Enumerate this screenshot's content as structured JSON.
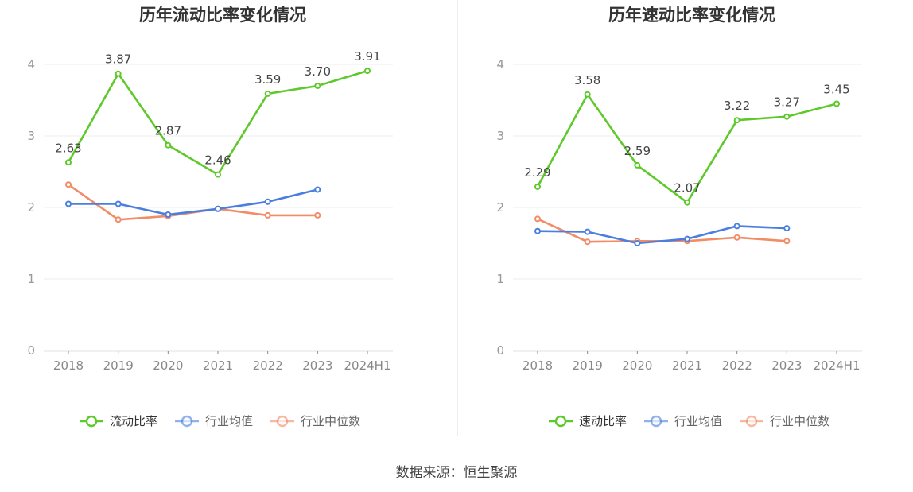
{
  "source": "数据来源：恒生聚源",
  "chart_data": [
    {
      "type": "line",
      "title": "历年流动比率变化情况",
      "categories": [
        "2018",
        "2019",
        "2020",
        "2021",
        "2022",
        "2023",
        "2024H1"
      ],
      "ylim": [
        0,
        4
      ],
      "yticks": [
        0,
        1,
        2,
        3,
        4
      ],
      "grid": true,
      "legend_position": "bottom",
      "series": [
        {
          "name": "流动比率",
          "color": "#5ec92a",
          "values": [
            2.63,
            3.87,
            2.87,
            2.46,
            3.59,
            3.7,
            3.91
          ],
          "labels": [
            "2.63",
            "3.87",
            "2.87",
            "2.46",
            "3.59",
            "3.70",
            "3.91"
          ]
        },
        {
          "name": "行业均值",
          "color": "#4a7fe0",
          "values": [
            2.05,
            2.05,
            1.9,
            1.98,
            2.08,
            2.25,
            null
          ]
        },
        {
          "name": "行业中位数",
          "color": "#f28c67",
          "values": [
            2.32,
            1.83,
            1.88,
            1.98,
            1.89,
            1.89,
            null
          ]
        }
      ]
    },
    {
      "type": "line",
      "title": "历年速动比率变化情况",
      "categories": [
        "2018",
        "2019",
        "2020",
        "2021",
        "2022",
        "2023",
        "2024H1"
      ],
      "ylim": [
        0,
        4
      ],
      "yticks": [
        0,
        1,
        2,
        3,
        4
      ],
      "grid": true,
      "legend_position": "bottom",
      "series": [
        {
          "name": "速动比率",
          "color": "#5ec92a",
          "values": [
            2.29,
            3.58,
            2.59,
            2.07,
            3.22,
            3.27,
            3.45
          ],
          "labels": [
            "2.29",
            "3.58",
            "2.59",
            "2.07",
            "3.22",
            "3.27",
            "3.45"
          ]
        },
        {
          "name": "行业均值",
          "color": "#4a7fe0",
          "values": [
            1.67,
            1.66,
            1.5,
            1.56,
            1.74,
            1.71,
            null
          ]
        },
        {
          "name": "行业中位数",
          "color": "#f28c67",
          "values": [
            1.84,
            1.52,
            1.53,
            1.53,
            1.58,
            1.53,
            null
          ]
        }
      ]
    }
  ]
}
